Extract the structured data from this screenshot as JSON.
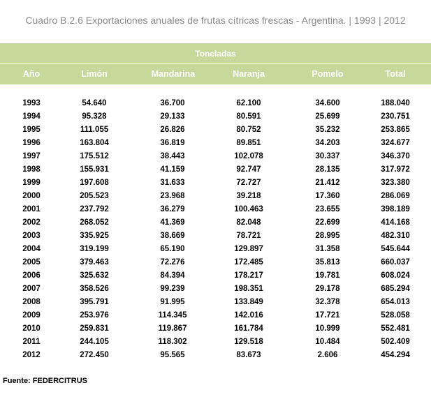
{
  "title": "Cuadro B.2.6 Exportaciones anuales de frutas cítricas frescas - Argentina. | 1993 | 2012",
  "colors": {
    "header_green": "#c6d99b",
    "header_text": "#ffffff",
    "title_gray": "#8a8a8a"
  },
  "table": {
    "unit_label": "Toneladas",
    "columns": [
      "Año",
      "Limón",
      "Mandarina",
      "Naranja",
      "Pomelo",
      "Total"
    ],
    "rows": [
      [
        "1993",
        "54.640",
        "36.700",
        "62.100",
        "34.600",
        "188.040"
      ],
      [
        "1994",
        "95.328",
        "29.133",
        "80.591",
        "25.699",
        "230.751"
      ],
      [
        "1995",
        "111.055",
        "26.826",
        "80.752",
        "35.232",
        "253.865"
      ],
      [
        "1996",
        "163.804",
        "36.819",
        "89.851",
        "34.203",
        "324.677"
      ],
      [
        "1997",
        "175.512",
        "38.443",
        "102.078",
        "30.337",
        "346.370"
      ],
      [
        "1998",
        "155.931",
        "41.159",
        "92.747",
        "28.135",
        "317.972"
      ],
      [
        "1999",
        "197.608",
        "31.633",
        "72.727",
        "21.412",
        "323.380"
      ],
      [
        "2000",
        "205.523",
        "23.968",
        "39.218",
        "17.360",
        "286.069"
      ],
      [
        "2001",
        "237.792",
        "36.279",
        "100.463",
        "23.655",
        "398.189"
      ],
      [
        "2002",
        "268.052",
        "41.369",
        "82.048",
        "22.699",
        "414.168"
      ],
      [
        "2003",
        "335.925",
        "38.669",
        "78.721",
        "28.995",
        "482.310"
      ],
      [
        "2004",
        "319.199",
        "65.190",
        "129.897",
        "31.358",
        "545.644"
      ],
      [
        "2005",
        "379.463",
        "72.276",
        "172.485",
        "35.813",
        "660.037"
      ],
      [
        "2006",
        "325.632",
        "84.394",
        "178.217",
        "19.781",
        "608.024"
      ],
      [
        "2007",
        "358.526",
        "99.239",
        "198.351",
        "29.178",
        "685.294"
      ],
      [
        "2008",
        "395.791",
        "91.995",
        "133.849",
        "32.378",
        "654.013"
      ],
      [
        "2009",
        "253.976",
        "114.345",
        "142.016",
        "17.721",
        "528.058"
      ],
      [
        "2010",
        "259.831",
        "119.867",
        "161.784",
        "10.999",
        "552.481"
      ],
      [
        "2011",
        "244.105",
        "118.302",
        "129.518",
        "10.484",
        "502.409"
      ],
      [
        "2012",
        "272.450",
        "95.565",
        "83.673",
        "2.606",
        "454.294"
      ]
    ]
  },
  "source": "Fuente: FEDERCITRUS"
}
